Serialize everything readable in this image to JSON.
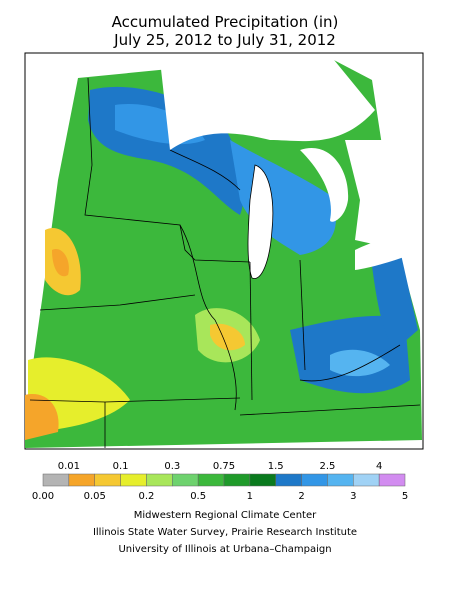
{
  "header": {
    "title": "Accumulated Precipitation (in)",
    "subtitle": "July 25, 2012 to July 31, 2012"
  },
  "legend": {
    "top_labels": [
      "0.01",
      "0.1",
      "0.3",
      "0.75",
      "1.5",
      "2.5",
      "4"
    ],
    "bottom_labels": [
      "0.00",
      "0.05",
      "0.2",
      "0.5",
      "1",
      "2",
      "3",
      "5"
    ],
    "colors": [
      "#b4b4b4",
      "#f5a52a",
      "#f5c832",
      "#e6ee2c",
      "#a8e65a",
      "#6ed26e",
      "#3cb83c",
      "#1f9a2a",
      "#0a7a1e",
      "#1e78c8",
      "#3296e6",
      "#55b4f0",
      "#a0d2f5",
      "#d28cf0"
    ]
  },
  "credits": [
    "Midwestern Regional Climate Center",
    "Illinois State Water Survey, Prairie Research Institute",
    "University of Illinois at Urbana–Champaign"
  ]
}
